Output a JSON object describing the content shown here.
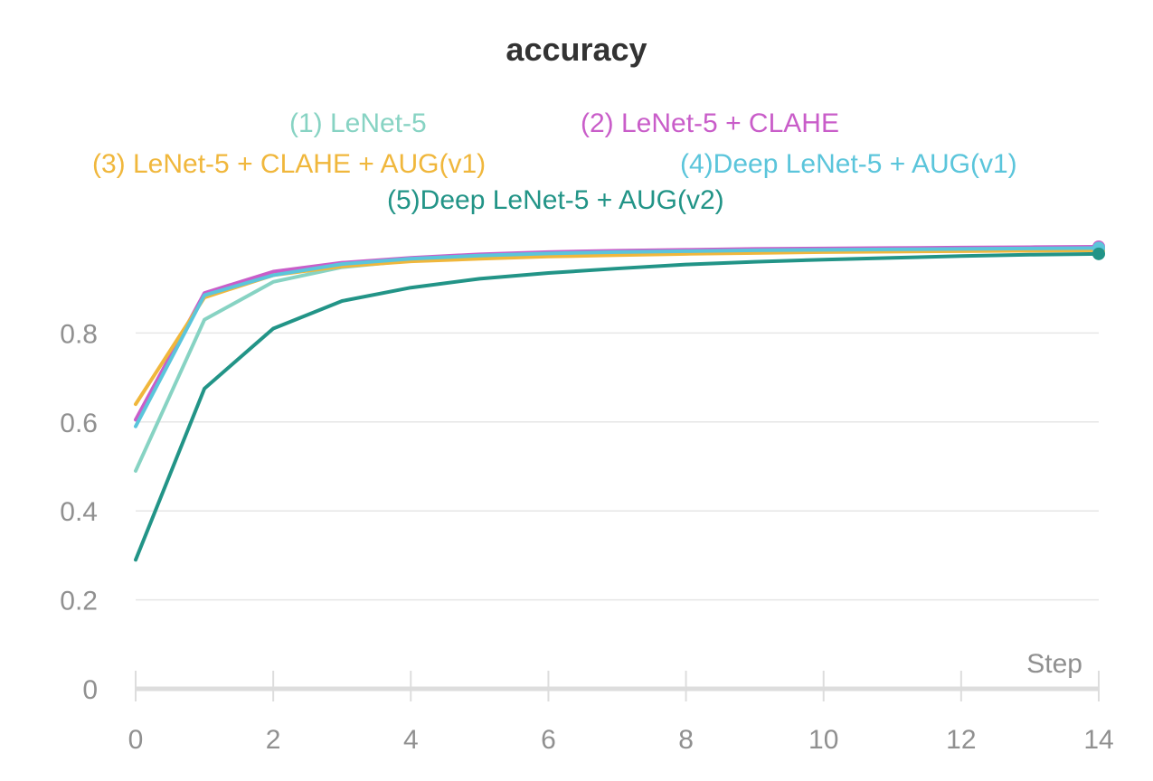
{
  "chart_data": {
    "type": "line",
    "title": "accuracy",
    "xlabel": "Step",
    "ylabel": "",
    "xlim": [
      0,
      14
    ],
    "ylim": [
      0,
      1
    ],
    "xticks": [
      0,
      2,
      4,
      6,
      8,
      10,
      12,
      14
    ],
    "yticks": [
      0,
      0.2,
      0.4,
      0.6,
      0.8
    ],
    "ytick_labels": [
      "0",
      "0.2",
      "0.4",
      "0.6",
      "0.8"
    ],
    "grid": true,
    "legend_position": "top",
    "x": [
      0,
      1,
      2,
      3,
      4,
      5,
      6,
      7,
      8,
      9,
      10,
      11,
      12,
      13,
      14
    ],
    "series": [
      {
        "name": "(1) LeNet-5",
        "color": "#87d3c3",
        "values": [
          0.49,
          0.83,
          0.915,
          0.948,
          0.963,
          0.97,
          0.975,
          0.979,
          0.981,
          0.983,
          0.984,
          0.985,
          0.986,
          0.987,
          0.988
        ]
      },
      {
        "name": "(2) LeNet-5 + CLAHE",
        "color": "#c95dc9",
        "values": [
          0.605,
          0.89,
          0.938,
          0.958,
          0.969,
          0.977,
          0.982,
          0.985,
          0.987,
          0.989,
          0.99,
          0.991,
          0.992,
          0.993,
          0.994
        ]
      },
      {
        "name": "(3) LeNet-5 + CLAHE + AUG(v1)",
        "color": "#f0b73c",
        "values": [
          0.64,
          0.88,
          0.93,
          0.95,
          0.961,
          0.967,
          0.972,
          0.975,
          0.978,
          0.98,
          0.982,
          0.983,
          0.984,
          0.985,
          0.986
        ]
      },
      {
        "name": "(4)Deep LeNet-5 + AUG(v1)",
        "color": "#5bc5db",
        "values": [
          0.59,
          0.885,
          0.93,
          0.955,
          0.967,
          0.974,
          0.979,
          0.982,
          0.984,
          0.986,
          0.987,
          0.988,
          0.989,
          0.99,
          0.991
        ]
      },
      {
        "name": "(5)Deep LeNet-5 + AUG(v2)",
        "color": "#229487",
        "values": [
          0.29,
          0.675,
          0.81,
          0.872,
          0.902,
          0.922,
          0.935,
          0.945,
          0.954,
          0.96,
          0.965,
          0.969,
          0.973,
          0.976,
          0.978
        ]
      }
    ]
  }
}
